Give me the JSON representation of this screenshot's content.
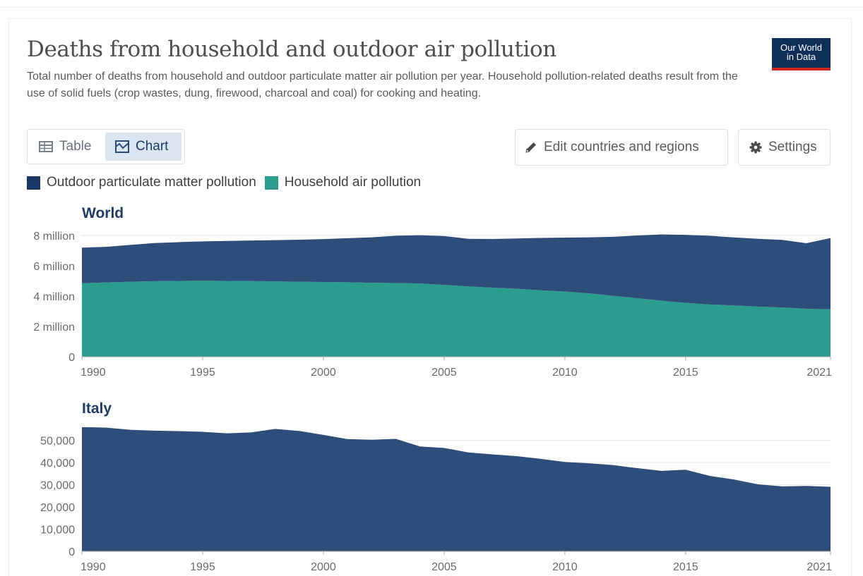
{
  "header": {
    "title": "Deaths from household and outdoor air pollution",
    "subtitle": "Total number of deaths from household and outdoor particulate matter air pollution per year. Household pollution-related deaths result from the use of solid fuels (crop wastes, dung, firewood, charcoal and coal) for cooking and heating.",
    "logo_line1": "Our World",
    "logo_line2": "in Data"
  },
  "tabs": [
    {
      "label": "Table",
      "icon": "table-icon",
      "active": false
    },
    {
      "label": "Chart",
      "icon": "chart-icon",
      "active": true
    }
  ],
  "actions": {
    "edit_label": "Edit countries and regions",
    "edit_icon": "pencil-icon",
    "settings_label": "Settings",
    "settings_icon": "gear-icon"
  },
  "colors": {
    "outdoor": "#2d4d7b",
    "household": "#2b9d8f",
    "logo_bg": "#0f2f5b",
    "logo_accent": "#ce261e"
  },
  "chart_data": [
    {
      "type": "area",
      "stacked": true,
      "title": "World",
      "x": [
        1990,
        1991,
        1992,
        1993,
        1994,
        1995,
        1996,
        1997,
        1998,
        1999,
        2000,
        2001,
        2002,
        2003,
        2004,
        2005,
        2006,
        2007,
        2008,
        2009,
        2010,
        2011,
        2012,
        2013,
        2014,
        2015,
        2016,
        2017,
        2018,
        2019,
        2020,
        2021
      ],
      "x_ticks": [
        "1990",
        "1995",
        "2000",
        "2005",
        "2010",
        "2015",
        "2021"
      ],
      "y_ticks": [
        "0",
        "2 million",
        "4 million",
        "6 million",
        "8 million"
      ],
      "ylim": [
        0,
        8000000
      ],
      "grid": true,
      "legend": "top-left",
      "series": [
        {
          "name": "Household air pollution",
          "color": "#2b9d8f",
          "values": [
            4850000,
            4900000,
            4950000,
            4980000,
            5000000,
            5010000,
            5000000,
            4990000,
            4970000,
            4950000,
            4930000,
            4910000,
            4880000,
            4860000,
            4830000,
            4740000,
            4640000,
            4560000,
            4480000,
            4380000,
            4300000,
            4180000,
            4020000,
            3860000,
            3700000,
            3550000,
            3450000,
            3380000,
            3310000,
            3250000,
            3160000,
            3130000
          ]
        },
        {
          "name": "Outdoor particulate matter pollution",
          "color": "#2d4d7b",
          "values": [
            2350000,
            2350000,
            2430000,
            2520000,
            2560000,
            2600000,
            2640000,
            2680000,
            2720000,
            2770000,
            2830000,
            2910000,
            3000000,
            3120000,
            3190000,
            3220000,
            3140000,
            3210000,
            3320000,
            3460000,
            3560000,
            3700000,
            3890000,
            4140000,
            4370000,
            4490000,
            4530000,
            4490000,
            4470000,
            4460000,
            4330000,
            4700000
          ]
        }
      ]
    },
    {
      "type": "area",
      "title": "Italy",
      "x": [
        1990,
        1991,
        1992,
        1993,
        1994,
        1995,
        1996,
        1997,
        1998,
        1999,
        2000,
        2001,
        2002,
        2003,
        2004,
        2005,
        2006,
        2007,
        2008,
        2009,
        2010,
        2011,
        2012,
        2013,
        2014,
        2015,
        2016,
        2017,
        2018,
        2019,
        2020,
        2021
      ],
      "x_ticks": [
        "1990",
        "1995",
        "2000",
        "2005",
        "2010",
        "2015",
        "2021"
      ],
      "y_ticks": [
        "0",
        "10,000",
        "20,000",
        "30,000",
        "40,000",
        "50,000"
      ],
      "ylim": [
        0,
        55000
      ],
      "grid": true,
      "series": [
        {
          "name": "Outdoor particulate matter pollution",
          "color": "#2d4d7b",
          "values": [
            56000,
            55800,
            54800,
            54400,
            54200,
            53900,
            53200,
            53600,
            55200,
            54300,
            52500,
            50600,
            50300,
            50700,
            47300,
            46600,
            44600,
            43700,
            42900,
            41700,
            40300,
            39700,
            38900,
            37500,
            36300,
            36800,
            34000,
            32400,
            30200,
            29300,
            29500,
            29100
          ]
        }
      ]
    }
  ]
}
